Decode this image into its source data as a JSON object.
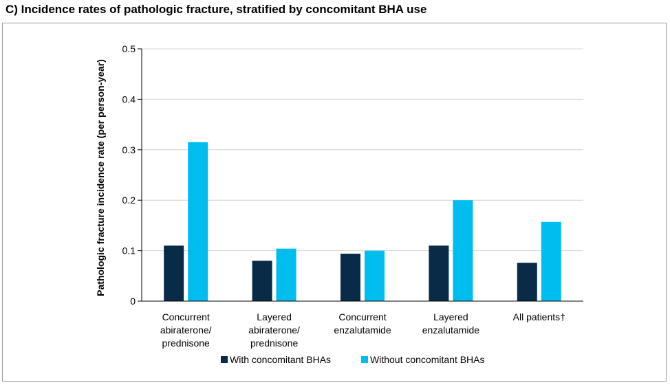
{
  "title": "C) Incidence rates of pathologic fracture, stratified by concomitant BHA use",
  "chart_data": {
    "type": "bar",
    "ylabel": "Pathologic fracture incidence rate (per person-year)",
    "xlabel": "",
    "ylim": [
      0,
      0.5
    ],
    "yticks": [
      "0",
      "0.1",
      "0.2",
      "0.3",
      "0.4",
      "0.5"
    ],
    "grid": true,
    "legend_position": "bottom",
    "categories": [
      [
        "Concurrent",
        "abiraterone/",
        "prednisone"
      ],
      [
        "Layered",
        "abiraterone/",
        "prednisone"
      ],
      [
        "Concurrent",
        "enzalutamide"
      ],
      [
        "Layered",
        "enzalutamide"
      ],
      [
        "All patients†"
      ]
    ],
    "series": [
      {
        "name": "With concomitant BHAs",
        "color": "#0a2b47",
        "values": [
          0.11,
          0.08,
          0.094,
          0.11,
          0.076
        ]
      },
      {
        "name": "Without concomitant BHAs",
        "color": "#00bdf0",
        "values": [
          0.315,
          0.104,
          0.1,
          0.2,
          0.157
        ]
      }
    ]
  }
}
